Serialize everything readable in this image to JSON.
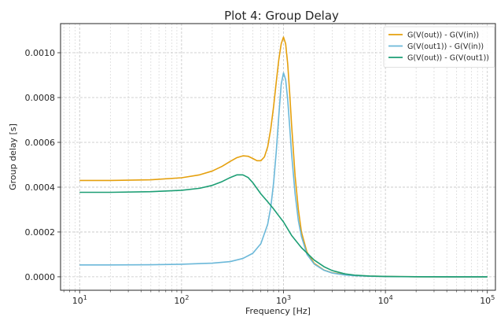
{
  "chart_data": {
    "type": "line",
    "title": "Plot 4: Group Delay",
    "xlabel": "Frequency [Hz]",
    "ylabel": "Group delay [s]",
    "xscale": "log",
    "xlim": [
      6.5,
      120000
    ],
    "ylim": [
      -6e-05,
      0.00113
    ],
    "xticks": [
      {
        "value": 10,
        "base": "10",
        "exp": "1"
      },
      {
        "value": 100,
        "base": "10",
        "exp": "2"
      },
      {
        "value": 1000,
        "base": "10",
        "exp": "3"
      },
      {
        "value": 10000,
        "base": "10",
        "exp": "4"
      },
      {
        "value": 100000,
        "base": "10",
        "exp": "5"
      }
    ],
    "yticks": [
      {
        "value": 0.0,
        "label": "0.0000"
      },
      {
        "value": 0.0002,
        "label": "0.0002"
      },
      {
        "value": 0.0004,
        "label": "0.0004"
      },
      {
        "value": 0.0006,
        "label": "0.0006"
      },
      {
        "value": 0.0008,
        "label": "0.0008"
      },
      {
        "value": 0.001,
        "label": "0.0010"
      }
    ],
    "grid": true,
    "legend_position": "top-right",
    "series": [
      {
        "name": "G(V(out)) - G(V(in))",
        "color": "#e5a00d",
        "x": [
          10,
          20,
          50,
          100,
          150,
          200,
          250,
          300,
          350,
          400,
          450,
          500,
          550,
          600,
          650,
          700,
          750,
          800,
          850,
          900,
          950,
          1000,
          1050,
          1100,
          1150,
          1200,
          1300,
          1400,
          1500,
          1700,
          2000,
          2500,
          3000,
          4000,
          5000,
          7000,
          10000,
          20000,
          50000,
          100000
        ],
        "y": [
          0.00043,
          0.00043,
          0.000433,
          0.000442,
          0.000455,
          0.000472,
          0.000493,
          0.000515,
          0.000532,
          0.00054,
          0.000538,
          0.000528,
          0.000518,
          0.000518,
          0.000535,
          0.00058,
          0.00066,
          0.00076,
          0.00087,
          0.00097,
          0.00104,
          0.00107,
          0.00104,
          0.00095,
          0.00082,
          0.00068,
          0.00045,
          0.0003,
          0.0002,
          0.00011,
          6e-05,
          3e-05,
          1.8e-05,
          1e-05,
          6e-06,
          3e-06,
          1.5e-06,
          5e-07,
          0.0,
          0.0
        ]
      },
      {
        "name": "G(V(out1)) - G(V(in))",
        "color": "#6bb8d9",
        "x": [
          10,
          20,
          50,
          100,
          200,
          300,
          400,
          500,
          600,
          700,
          750,
          800,
          850,
          900,
          950,
          1000,
          1050,
          1100,
          1150,
          1200,
          1300,
          1400,
          1500,
          1700,
          2000,
          2500,
          3000,
          4000,
          5000,
          7000,
          10000,
          20000,
          50000,
          100000
        ],
        "y": [
          5.3e-05,
          5.3e-05,
          5.4e-05,
          5.6e-05,
          6.1e-05,
          6.8e-05,
          8.2e-05,
          0.000105,
          0.000148,
          0.000235,
          0.00031,
          0.00042,
          0.00056,
          0.00072,
          0.00086,
          0.00091,
          0.00088,
          0.00079,
          0.00067,
          0.00055,
          0.00037,
          0.00025,
          0.00018,
          0.0001,
          5.7e-05,
          2.9e-05,
          1.7e-05,
          8e-06,
          5e-06,
          2.5e-06,
          1.2e-06,
          3e-07,
          0.0,
          0.0
        ]
      },
      {
        "name": "G(V(out)) - G(V(out1))",
        "color": "#1c9e74",
        "x": [
          10,
          20,
          50,
          100,
          150,
          200,
          250,
          300,
          350,
          400,
          450,
          500,
          600,
          700,
          800,
          900,
          1000,
          1200,
          1500,
          2000,
          2500,
          3000,
          4000,
          5000,
          7000,
          10000,
          20000,
          50000,
          100000
        ],
        "y": [
          0.000377,
          0.000377,
          0.00038,
          0.000386,
          0.000395,
          0.000408,
          0.000425,
          0.000443,
          0.000455,
          0.000455,
          0.000443,
          0.00042,
          0.00037,
          0.000335,
          0.000303,
          0.000272,
          0.000245,
          0.000185,
          0.00013,
          7.5e-05,
          4.5e-05,
          2.8e-05,
          1.3e-05,
          7.5e-06,
          3.5e-06,
          1.5e-06,
          3e-07,
          0.0,
          0.0
        ]
      }
    ]
  }
}
